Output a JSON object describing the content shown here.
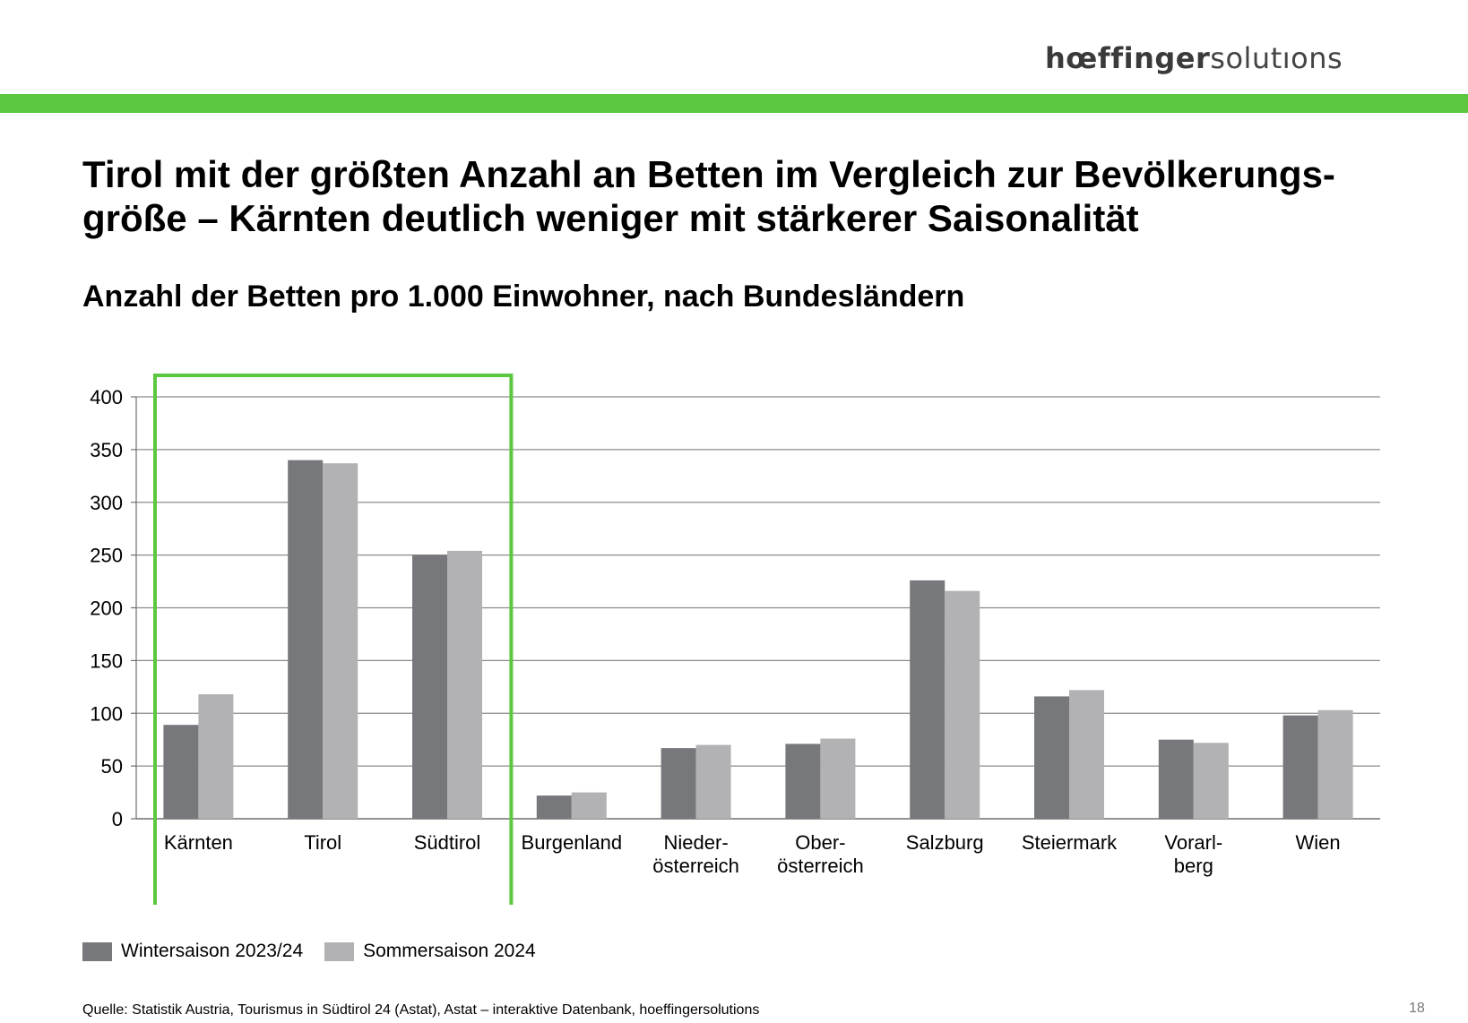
{
  "logo": {
    "bold": "hœffinger",
    "light": "solutıons"
  },
  "headline": "Tirol mit der größten Anzahl an Betten im Vergleich zur Bevölkerungs-größe – Kärnten deutlich weniger mit stärkerer Saisonalität",
  "subtitle": "Anzahl der Betten pro 1.000 Einwohner, nach Bundesländern",
  "footer": {
    "source": "Quelle: Statistik Austria, Tourismus in Südtirol 24 (Astat), Astat – interaktive Datenbank, hoeffingersolutions",
    "page_number": "18"
  },
  "colors": {
    "accent_green": "#5cc840",
    "winter": "#77787b",
    "summer": "#b2b2b4",
    "gridline": "#8c8c8c"
  },
  "chart_data": {
    "type": "bar",
    "title": "Anzahl der Betten pro 1.000 Einwohner, nach Bundesländern",
    "categories": [
      "Kärnten",
      "Tirol",
      "Südtirol",
      "Burgenland",
      "Nieder-\nösterreich",
      "Ober-\nösterreich",
      "Salzburg",
      "Steiermark",
      "Vorarl-\nberg",
      "Wien"
    ],
    "series": [
      {
        "name": "Wintersaison 2023/24",
        "color": "#77787b",
        "values": [
          89,
          340,
          250,
          22,
          67,
          71,
          226,
          116,
          75,
          98
        ]
      },
      {
        "name": "Sommersaison 2024",
        "color": "#b2b2b4",
        "values": [
          118,
          337,
          254,
          25,
          70,
          76,
          216,
          122,
          72,
          103
        ]
      }
    ],
    "ylim": [
      0,
      400
    ],
    "yticks": [
      0,
      50,
      100,
      150,
      200,
      250,
      300,
      350,
      400
    ],
    "grid": true,
    "legend_position": "bottom-left",
    "highlight": {
      "categories": [
        "Kärnten",
        "Tirol",
        "Südtirol"
      ],
      "color": "#5cc840"
    }
  }
}
